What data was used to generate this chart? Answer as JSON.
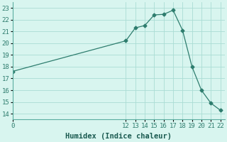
{
  "x": [
    0,
    12,
    13,
    14,
    15,
    16,
    17,
    18,
    19,
    20,
    21,
    22
  ],
  "y": [
    17.6,
    20.2,
    21.3,
    21.5,
    22.4,
    22.45,
    22.8,
    21.1,
    18.0,
    16.0,
    14.9,
    14.3
  ],
  "line_color": "#2e7d6e",
  "marker": "D",
  "marker_size": 2.5,
  "bg_color": "#d8f5ef",
  "grid_color": "#aaddd4",
  "xlabel": "Humidex (Indice chaleur)",
  "xlabel_fontsize": 7.5,
  "xticks": [
    0,
    12,
    13,
    14,
    15,
    16,
    17,
    18,
    19,
    20,
    21,
    22
  ],
  "yticks": [
    14,
    15,
    16,
    17,
    18,
    19,
    20,
    21,
    22,
    23
  ],
  "ylim": [
    13.5,
    23.5
  ],
  "xlim": [
    0,
    22.5
  ],
  "tick_fontsize": 6.5
}
